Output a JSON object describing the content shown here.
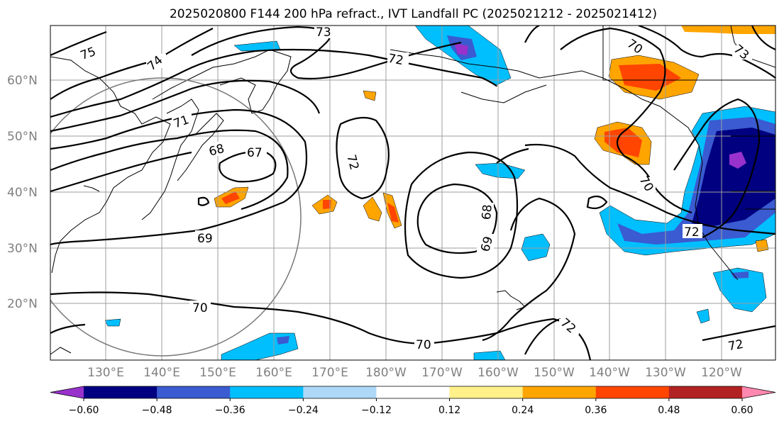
{
  "title": "2025020800 F144 200 hPa refract., IVT Landfall PC (2025021212 - 2025021412)",
  "lat_labels": [
    "60°N",
    "50°N",
    "40°N",
    "30°N",
    "20°N"
  ],
  "lon_labels": [
    "130°E",
    "140°E",
    "150°E",
    "160°E",
    "170°E",
    "180°W",
    "170°W",
    "160°W",
    "150°W",
    "140°W",
    "130°W",
    "120°W"
  ],
  "contour_labels": [
    "75",
    "74",
    "73",
    "72",
    "70",
    "73",
    "71",
    "68",
    "67",
    "72",
    "68",
    "69",
    "70",
    "72",
    "69",
    "70",
    "70",
    "72"
  ],
  "colorbar": {
    "colors": [
      "#9932CC",
      "#000080",
      "#3A5BD1",
      "#00BFFF",
      "#ADD8F8",
      "#FFFFFF",
      "#FFF08A",
      "#FFA500",
      "#FF4500",
      "#B22222",
      "#FF88B0"
    ],
    "ticks": [
      "−0.60",
      "−0.48",
      "−0.36",
      "−0.24",
      "−0.12",
      "0.12",
      "0.24",
      "0.36",
      "0.48",
      "0.60"
    ]
  }
}
